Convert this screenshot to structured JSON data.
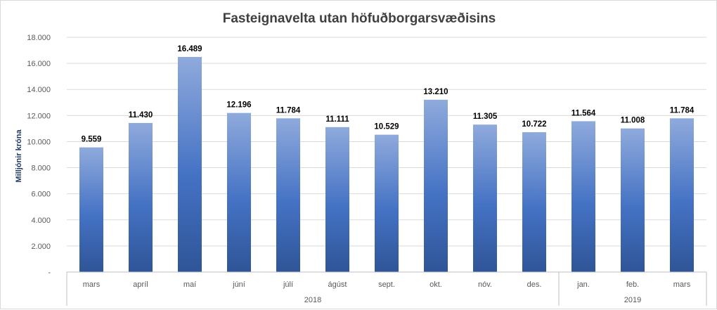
{
  "chart_data": {
    "type": "bar",
    "title": "Fasteignavelta utan höfuðborgarsvæðisins",
    "ylabel": "Milljónir króna",
    "xlabel": "",
    "ylim": [
      0,
      18000
    ],
    "ytick_values": [
      0,
      2000,
      4000,
      6000,
      8000,
      10000,
      12000,
      14000,
      16000,
      18000
    ],
    "ytick_labels": [
      "-",
      "2.000",
      "4.000",
      "6.000",
      "8.000",
      "10.000",
      "12.000",
      "14.000",
      "16.000",
      "18.000"
    ],
    "grid": true,
    "categories": [
      "mars",
      "apríl",
      "maí",
      "júní",
      "júlí",
      "ágúst",
      "sept.",
      "okt.",
      "nóv.",
      "des.",
      "jan.",
      "feb.",
      "mars"
    ],
    "values": [
      9559,
      11430,
      16489,
      12196,
      11784,
      11111,
      10529,
      13210,
      11305,
      10722,
      11564,
      11008,
      11784
    ],
    "value_labels": [
      "9.559",
      "11.430",
      "16.489",
      "12.196",
      "11.784",
      "11.111",
      "10.529",
      "13.210",
      "11.305",
      "10.722",
      "11.564",
      "11.008",
      "11.784"
    ],
    "groups": [
      {
        "label": "2018",
        "start": 0,
        "end": 9
      },
      {
        "label": "2019",
        "start": 10,
        "end": 12
      }
    ],
    "colors": {
      "bar_top": "#8faadc",
      "bar_mid": "#4472c4",
      "bar_bottom": "#2f5597"
    }
  }
}
